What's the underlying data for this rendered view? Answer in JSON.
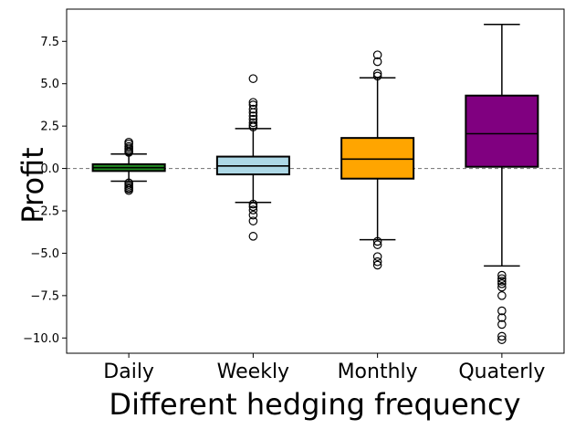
{
  "chart_data": {
    "type": "box",
    "title": "",
    "xlabel": "Different hedging frequency",
    "ylabel": "Profit",
    "ylim": [
      -10.9,
      9.4
    ],
    "yticks": [
      7.5,
      5.0,
      2.5,
      0.0,
      -2.5,
      -5.0,
      -7.5,
      -10.0
    ],
    "ytick_labels": [
      "7.5",
      "5.0",
      "2.5",
      "0.0",
      "−2.5",
      "−5.0",
      "−7.5",
      "−10.0"
    ],
    "reference_line": {
      "y": 0.0,
      "style": "dashed",
      "color": "#808080"
    },
    "categories": [
      "Daily",
      "Weekly",
      "Monthly",
      "Quaterly"
    ],
    "boxes": [
      {
        "category": "Daily",
        "color": "#228b22",
        "whisker_low": -0.75,
        "q1": -0.15,
        "median": 0.05,
        "q3": 0.25,
        "whisker_high": 0.85,
        "outliers": [
          1.55,
          1.45,
          1.3,
          1.2,
          1.1,
          1.0,
          0.95,
          -0.85,
          -0.95,
          -1.05,
          -1.15,
          -1.2,
          -1.3
        ]
      },
      {
        "category": "Weekly",
        "color": "#add8e6",
        "whisker_low": -2.0,
        "q1": -0.35,
        "median": 0.15,
        "q3": 0.7,
        "whisker_high": 2.35,
        "outliers": [
          5.3,
          3.9,
          3.75,
          3.5,
          3.3,
          3.1,
          2.9,
          2.7,
          2.55,
          2.45,
          -2.1,
          -2.25,
          -2.45,
          -2.75,
          -3.1,
          -4.0
        ]
      },
      {
        "category": "Monthly",
        "color": "#ffa500",
        "whisker_low": -4.2,
        "q1": -0.6,
        "median": 0.55,
        "q3": 1.8,
        "whisker_high": 5.35,
        "outliers": [
          6.7,
          6.3,
          5.6,
          5.45,
          -4.3,
          -4.5,
          -5.2,
          -5.5,
          -5.7
        ]
      },
      {
        "category": "Quaterly",
        "color": "#800080",
        "whisker_low": -5.75,
        "q1": 0.1,
        "median": 2.05,
        "q3": 4.3,
        "whisker_high": 8.5,
        "outliers": [
          -6.3,
          -6.5,
          -6.65,
          -6.8,
          -7.0,
          -7.5,
          -8.4,
          -8.8,
          -9.2,
          -9.9,
          -10.1
        ]
      }
    ],
    "grid": false,
    "legend": "none"
  }
}
